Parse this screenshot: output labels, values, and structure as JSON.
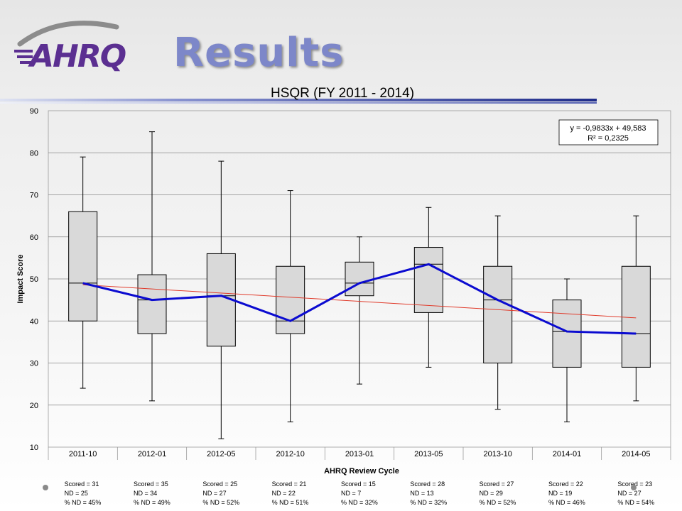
{
  "slide": {
    "title": "Results",
    "logo_text": "AHRQ",
    "colors": {
      "title": "#7d87c9",
      "logo": "#5b2f91",
      "rule": "#1f2c8a"
    }
  },
  "chart_data": {
    "type": "box",
    "title": "HSQR (FY 2011 - 2014)",
    "xlabel": "AHRQ Review Cycle",
    "ylabel": "Impact Score",
    "ylim": [
      10,
      90
    ],
    "yticks": [
      10,
      20,
      30,
      40,
      50,
      60,
      70,
      80,
      90
    ],
    "grid": true,
    "categories": [
      "2011-10",
      "2012-01",
      "2012-05",
      "2012-10",
      "2013-01",
      "2013-05",
      "2013-10",
      "2014-01",
      "2014-05"
    ],
    "boxes": [
      {
        "min": 24,
        "q1": 40,
        "median": 49,
        "q3": 66,
        "max": 79
      },
      {
        "min": 21,
        "q1": 37,
        "median": 45,
        "q3": 51,
        "max": 85
      },
      {
        "min": 12,
        "q1": 34,
        "median": 46,
        "q3": 56,
        "max": 78
      },
      {
        "min": 16,
        "q1": 37,
        "median": 40,
        "q3": 53,
        "max": 71
      },
      {
        "min": 25,
        "q1": 46,
        "median": 49,
        "q3": 54,
        "max": 60
      },
      {
        "min": 29,
        "q1": 42,
        "median": 53.5,
        "q3": 57.5,
        "max": 67
      },
      {
        "min": 19,
        "q1": 30,
        "median": 45,
        "q3": 53,
        "max": 65
      },
      {
        "min": 16,
        "q1": 29,
        "median": 37.5,
        "q3": 45,
        "max": 50
      },
      {
        "min": 21,
        "q1": 29,
        "median": 37,
        "q3": 53,
        "max": 65
      }
    ],
    "median_line": [
      49,
      45,
      46,
      40,
      49,
      53.5,
      45,
      37.5,
      37
    ],
    "trendline": {
      "slope": -0.9833,
      "intercept": 49.583,
      "equation": "y = -0,9833x + 49,583",
      "r2": "R² = 0,2325",
      "placement": "top-right"
    },
    "annotations": [
      {
        "scored": "Scored = 31",
        "nd": "ND = 25",
        "pct": "% ND = 45%"
      },
      {
        "scored": "Scored = 35",
        "nd": "ND = 34",
        "pct": "% ND = 49%"
      },
      {
        "scored": "Scored = 25",
        "nd": "ND = 27",
        "pct": "% ND = 52%"
      },
      {
        "scored": "Scored = 21",
        "nd": "ND = 22",
        "pct": "% ND = 51%"
      },
      {
        "scored": "Scored = 15",
        "nd": "ND = 7",
        "pct": "% ND = 32%"
      },
      {
        "scored": "Scored = 28",
        "nd": "ND = 13",
        "pct": "% ND = 32%"
      },
      {
        "scored": "Scored = 27",
        "nd": "ND = 29",
        "pct": "% ND = 52%"
      },
      {
        "scored": "Scored = 22",
        "nd": "ND = 19",
        "pct": "% ND = 46%"
      },
      {
        "scored": "Scored = 23",
        "nd": "ND = 27",
        "pct": "% ND = 54%"
      }
    ],
    "colors": {
      "box_fill": "#d9d9d9",
      "median_line": "#0b0bd0",
      "trendline": "#e03a2a",
      "grid": "#888888"
    }
  }
}
